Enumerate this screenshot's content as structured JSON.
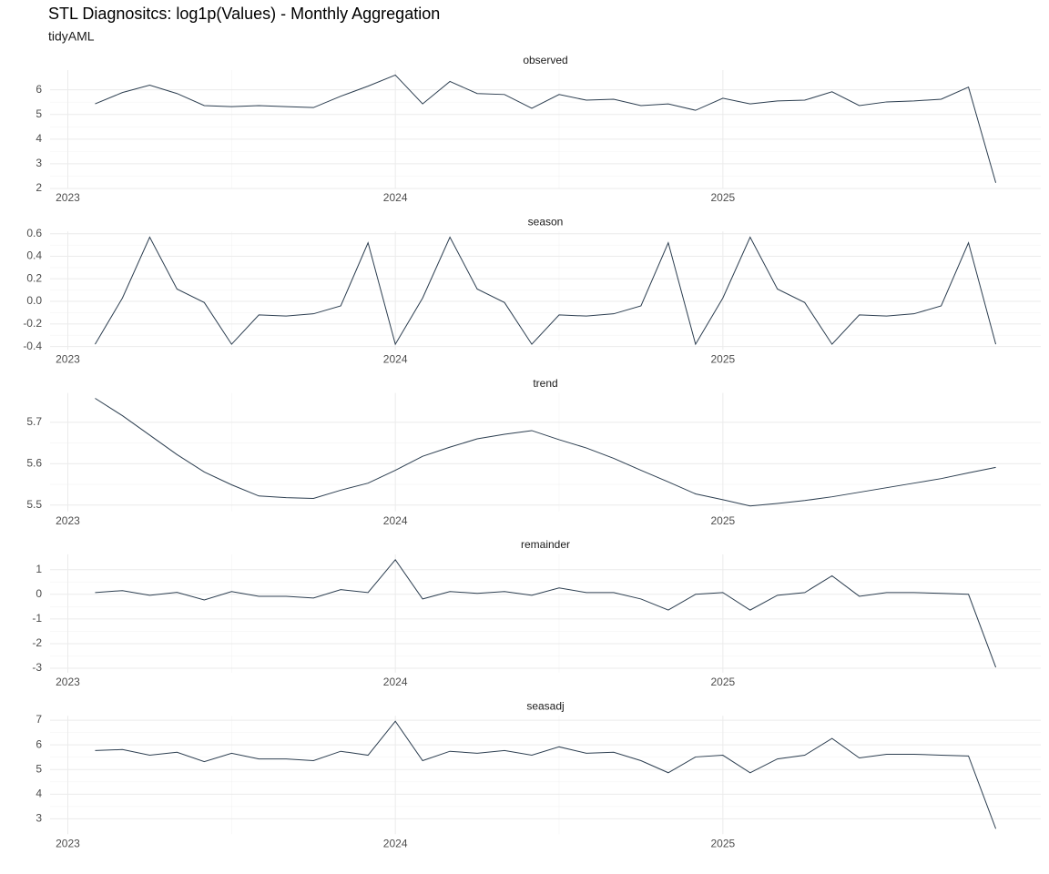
{
  "title": "STL Diagnositcs: log1p(Values) - Monthly Aggregation",
  "subtitle": "tidyAML",
  "chart_data": [
    {
      "type": "line",
      "title": "observed",
      "color": "#2c3e50",
      "grid": true,
      "x": [
        "2023-02",
        "2023-03",
        "2023-04",
        "2023-05",
        "2023-06",
        "2023-07",
        "2023-08",
        "2023-09",
        "2023-10",
        "2023-11",
        "2023-12",
        "2024-01",
        "2024-02",
        "2024-03",
        "2024-04",
        "2024-05",
        "2024-06",
        "2024-07",
        "2024-08",
        "2024-09",
        "2024-10",
        "2024-11",
        "2024-12",
        "2025-01",
        "2025-02",
        "2025-03",
        "2025-04",
        "2025-05",
        "2025-06",
        "2025-07",
        "2025-08",
        "2025-09",
        "2025-10",
        "2025-11"
      ],
      "values": [
        5.43,
        5.89,
        6.19,
        5.85,
        5.36,
        5.32,
        5.36,
        5.32,
        5.28,
        5.74,
        6.15,
        6.6,
        5.43,
        6.34,
        5.85,
        5.81,
        5.25,
        5.81,
        5.58,
        5.62,
        5.36,
        5.43,
        5.17,
        5.66,
        5.43,
        5.55,
        5.58,
        5.92,
        5.36,
        5.51,
        5.55,
        5.62,
        6.11,
        2.23
      ],
      "ylim": [
        2.0,
        6.8
      ],
      "yticks": [
        2,
        3,
        4,
        5,
        6
      ],
      "xticks": [
        {
          "value": "2023-01",
          "label": "2023"
        },
        {
          "value": "2024-01",
          "label": "2024"
        },
        {
          "value": "2025-01",
          "label": "2025"
        }
      ]
    },
    {
      "type": "line",
      "title": "season",
      "color": "#2c3e50",
      "grid": true,
      "x": [
        "2023-02",
        "2023-03",
        "2023-04",
        "2023-05",
        "2023-06",
        "2023-07",
        "2023-08",
        "2023-09",
        "2023-10",
        "2023-11",
        "2023-12",
        "2024-01",
        "2024-02",
        "2024-03",
        "2024-04",
        "2024-05",
        "2024-06",
        "2024-07",
        "2024-08",
        "2024-09",
        "2024-10",
        "2024-11",
        "2024-12",
        "2025-01",
        "2025-02",
        "2025-03",
        "2025-04",
        "2025-05",
        "2025-06",
        "2025-07",
        "2025-08",
        "2025-09",
        "2025-10",
        "2025-11"
      ],
      "values": [
        -0.38,
        0.03,
        0.57,
        0.11,
        -0.01,
        -0.38,
        -0.12,
        -0.13,
        -0.11,
        -0.04,
        0.52,
        -0.38,
        0.03,
        0.57,
        0.11,
        -0.01,
        -0.38,
        -0.12,
        -0.13,
        -0.11,
        -0.04,
        0.52,
        -0.38,
        0.03,
        0.57,
        0.11,
        -0.01,
        -0.38,
        -0.12,
        -0.13,
        -0.11,
        -0.04,
        0.52,
        -0.38
      ],
      "ylim": [
        -0.43,
        0.62
      ],
      "yticks": [
        -0.4,
        -0.2,
        {
          "value": 0,
          "label": "0.0"
        },
        0.2,
        0.4,
        0.6
      ],
      "xticks": [
        {
          "value": "2023-01",
          "label": "2023"
        },
        {
          "value": "2024-01",
          "label": "2024"
        },
        {
          "value": "2025-01",
          "label": "2025"
        }
      ]
    },
    {
      "type": "line",
      "title": "trend",
      "color": "#2c3e50",
      "grid": true,
      "x": [
        "2023-02",
        "2023-03",
        "2023-04",
        "2023-05",
        "2023-06",
        "2023-07",
        "2023-08",
        "2023-09",
        "2023-10",
        "2023-11",
        "2023-12",
        "2024-01",
        "2024-02",
        "2024-03",
        "2024-04",
        "2024-05",
        "2024-06",
        "2024-07",
        "2024-08",
        "2024-09",
        "2024-10",
        "2024-11",
        "2024-12",
        "2025-01",
        "2025-02",
        "2025-03",
        "2025-04",
        "2025-05",
        "2025-06",
        "2025-07",
        "2025-08",
        "2025-09",
        "2025-10",
        "2025-11"
      ],
      "values": [
        5.758,
        5.716,
        5.669,
        5.622,
        5.58,
        5.549,
        5.522,
        5.518,
        5.516,
        5.536,
        5.553,
        5.584,
        5.618,
        5.64,
        5.66,
        5.671,
        5.68,
        5.658,
        5.638,
        5.613,
        5.584,
        5.556,
        5.527,
        5.513,
        5.498,
        5.504,
        5.511,
        5.52,
        5.531,
        5.542,
        5.553,
        5.564,
        5.578,
        5.591
      ],
      "ylim": [
        5.485,
        5.771
      ],
      "yticks": [
        5.5,
        5.6,
        5.7
      ],
      "xticks": [
        {
          "value": "2023-01",
          "label": "2023"
        },
        {
          "value": "2024-01",
          "label": "2024"
        },
        {
          "value": "2025-01",
          "label": "2025"
        }
      ]
    },
    {
      "type": "line",
      "title": "remainder",
      "color": "#2c3e50",
      "grid": true,
      "x": [
        "2023-02",
        "2023-03",
        "2023-04",
        "2023-05",
        "2023-06",
        "2023-07",
        "2023-08",
        "2023-09",
        "2023-10",
        "2023-11",
        "2023-12",
        "2024-01",
        "2024-02",
        "2024-03",
        "2024-04",
        "2024-05",
        "2024-06",
        "2024-07",
        "2024-08",
        "2024-09",
        "2024-10",
        "2024-11",
        "2024-12",
        "2025-01",
        "2025-02",
        "2025-03",
        "2025-04",
        "2025-05",
        "2025-06",
        "2025-07",
        "2025-08",
        "2025-09",
        "2025-10",
        "2025-11"
      ],
      "values": [
        0.07,
        0.15,
        -0.04,
        0.08,
        -0.23,
        0.11,
        -0.08,
        -0.08,
        -0.15,
        0.19,
        0.07,
        1.4,
        -0.19,
        0.11,
        0.04,
        0.11,
        -0.04,
        0.26,
        0.07,
        0.07,
        -0.19,
        -0.64,
        0.0,
        0.07,
        -0.64,
        -0.04,
        0.07,
        0.75,
        -0.08,
        0.07,
        0.07,
        0.04,
        0.0,
        -2.96
      ],
      "ylim": [
        -3.18,
        1.62
      ],
      "yticks": [
        -3,
        -2,
        -1,
        0,
        1
      ],
      "xticks": [
        {
          "value": "2023-01",
          "label": "2023"
        },
        {
          "value": "2024-01",
          "label": "2024"
        },
        {
          "value": "2025-01",
          "label": "2025"
        }
      ]
    },
    {
      "type": "line",
      "title": "seasadj",
      "color": "#2c3e50",
      "grid": true,
      "x": [
        "2023-02",
        "2023-03",
        "2023-04",
        "2023-05",
        "2023-06",
        "2023-07",
        "2023-08",
        "2023-09",
        "2023-10",
        "2023-11",
        "2023-12",
        "2024-01",
        "2024-02",
        "2024-03",
        "2024-04",
        "2024-05",
        "2024-06",
        "2024-07",
        "2024-08",
        "2024-09",
        "2024-10",
        "2024-11",
        "2024-12",
        "2025-01",
        "2025-02",
        "2025-03",
        "2025-04",
        "2025-05",
        "2025-06",
        "2025-07",
        "2025-08",
        "2025-09",
        "2025-10",
        "2025-11"
      ],
      "values": [
        5.77,
        5.81,
        5.58,
        5.7,
        5.32,
        5.66,
        5.43,
        5.43,
        5.36,
        5.74,
        5.58,
        6.96,
        5.36,
        5.74,
        5.66,
        5.77,
        5.58,
        5.92,
        5.66,
        5.7,
        5.36,
        4.87,
        5.51,
        5.58,
        4.87,
        5.43,
        5.58,
        6.26,
        5.47,
        5.62,
        5.62,
        5.58,
        5.55,
        2.6
      ],
      "ylim": [
        2.38,
        7.18
      ],
      "yticks": [
        3,
        4,
        5,
        6,
        7
      ],
      "xticks": [
        {
          "value": "2023-01",
          "label": "2023"
        },
        {
          "value": "2024-01",
          "label": "2024"
        },
        {
          "value": "2025-01",
          "label": "2025"
        }
      ]
    }
  ]
}
